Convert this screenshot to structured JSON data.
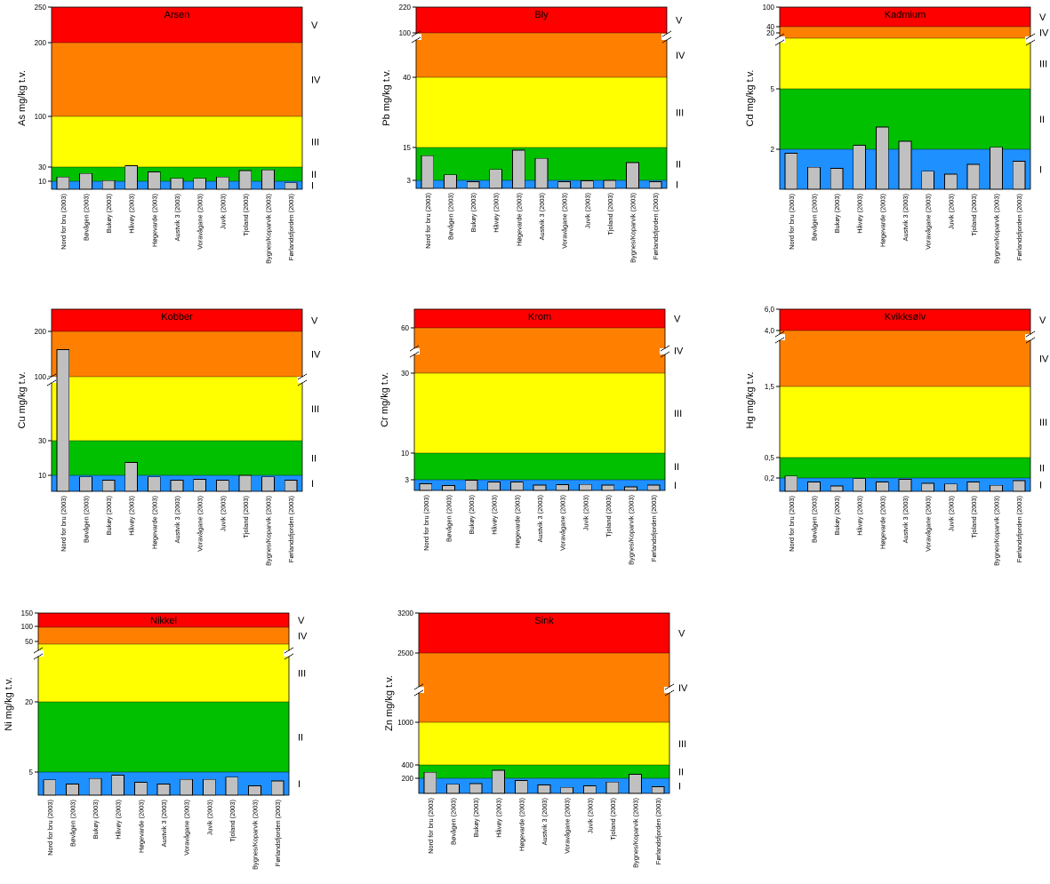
{
  "colors": {
    "class_I": "#1e90ff",
    "class_II": "#00c000",
    "class_III": "#ffff00",
    "class_IV": "#ff8000",
    "class_V": "#ff0000",
    "bar": "#c0c0c0"
  },
  "categories": [
    "Nord for bru (2003)",
    "Bøvågen (2003)",
    "Bukøy (2003)",
    "Håvøy (2003)",
    "Høgevarde (2003)",
    "Austvik 3 (2003)",
    "Voravågane (2003)",
    "Juvik (2003)",
    "Tjoland (2003)",
    "Bygnes/Koparvik (2003)",
    "Førlandsfjorden (2003)"
  ],
  "chart_data": [
    {
      "type": "bar",
      "title": "Arsen",
      "ylabel": "As mg/kg t.v.",
      "ylim": [
        0,
        250
      ],
      "yticks": [
        "10",
        "30",
        "100",
        "200",
        "250"
      ],
      "class_bounds": [
        10,
        30,
        100,
        200,
        250
      ],
      "class_labels": [
        "I",
        "II",
        "III",
        "IV",
        "V"
      ],
      "values": [
        16,
        21,
        11,
        32,
        23,
        14,
        14,
        16,
        25,
        26,
        8
      ]
    },
    {
      "type": "bar",
      "title": "Bly",
      "ylabel": "Pb mg/kg t.v.",
      "ylim": [
        0,
        220
      ],
      "yticks": [
        "3",
        "15",
        "40",
        "100",
        "220"
      ],
      "class_bounds": [
        3,
        15,
        40,
        100,
        220
      ],
      "class_labels": [
        "I",
        "II",
        "III",
        "IV",
        "V"
      ],
      "axis_break": true,
      "values": [
        12,
        5,
        2.5,
        7,
        14,
        11,
        2.5,
        2.8,
        3,
        9.5,
        2.5
      ]
    },
    {
      "type": "bar",
      "title": "Kadmium",
      "ylabel": "Cd mg/kg t.v.",
      "ylim": [
        0,
        100
      ],
      "yticks": [
        "2",
        "5",
        "20",
        "40",
        "100"
      ],
      "class_bounds": [
        2,
        5,
        20,
        40,
        100
      ],
      "class_labels": [
        "I",
        "II",
        "III",
        "IV",
        "V"
      ],
      "axis_break": true,
      "values": [
        1.8,
        1.1,
        1.05,
        2.2,
        3.1,
        2.4,
        0.9,
        0.75,
        1.25,
        2.1,
        1.4
      ]
    },
    {
      "type": "bar",
      "title": "Kobber",
      "ylabel": "Cu mg/kg t.v.",
      "ylim": [
        0,
        250
      ],
      "yticks": [
        "10",
        "30",
        "100",
        "200"
      ],
      "class_bounds": [
        10,
        30,
        100,
        200,
        250
      ],
      "class_labels": [
        "I",
        "II",
        "III",
        "IV",
        "V"
      ],
      "axis_break": true,
      "values": [
        160,
        9,
        7,
        17.5,
        9,
        7,
        7.5,
        7,
        10,
        9,
        7
      ]
    },
    {
      "type": "bar",
      "title": "Krom",
      "ylabel": "Cr mg/kg t.v.",
      "ylim": [
        0,
        70
      ],
      "yticks": [
        "3",
        "10",
        "30",
        "60"
      ],
      "class_bounds": [
        3,
        10,
        30,
        60,
        70
      ],
      "class_labels": [
        "I",
        "II",
        "III",
        "IV",
        "V"
      ],
      "axis_break": true,
      "values": [
        1.9,
        1.4,
        2.9,
        2.4,
        2.4,
        1.5,
        1.6,
        1.7,
        1.5,
        1.0,
        1.5
      ]
    },
    {
      "type": "bar",
      "title": "Kvikksølv",
      "ylabel": "Hg mg/kg t.v.",
      "ylim": [
        0,
        6
      ],
      "yticks": [
        "0,2",
        "0,5",
        "1,5",
        "4,0",
        "6,0"
      ],
      "class_bounds": [
        0.2,
        0.5,
        1.5,
        4.0,
        6.0
      ],
      "class_labels": [
        "I",
        "II",
        "III",
        "IV",
        "V"
      ],
      "axis_break": true,
      "values": [
        0.23,
        0.14,
        0.08,
        0.19,
        0.14,
        0.18,
        0.12,
        0.11,
        0.14,
        0.09,
        0.16
      ]
    },
    {
      "type": "bar",
      "title": "Nikkel",
      "ylabel": "Ni mg/kg t.v.",
      "ylim": [
        0,
        150
      ],
      "yticks": [
        "5",
        "20",
        "50",
        "100",
        "150"
      ],
      "class_bounds": [
        5,
        20,
        50,
        100,
        150
      ],
      "class_labels": [
        "I",
        "II",
        "III",
        "IV",
        "V"
      ],
      "axis_break": true,
      "values": [
        3.3,
        2.4,
        3.6,
        4.3,
        2.8,
        2.4,
        3.4,
        3.4,
        3.9,
        2.0,
        3.1
      ]
    },
    {
      "type": "bar",
      "title": "Sink",
      "ylabel": "Zn mg/kg t.v.",
      "ylim": [
        0,
        3200
      ],
      "yticks": [
        "200",
        "400",
        "1000",
        "2500",
        "3200"
      ],
      "class_bounds": [
        200,
        400,
        1000,
        2500,
        3200
      ],
      "class_labels": [
        "I",
        "II",
        "III",
        "IV",
        "V"
      ],
      "axis_break": true,
      "values": [
        290,
        120,
        130,
        320,
        170,
        110,
        80,
        100,
        150,
        260,
        90
      ]
    }
  ]
}
